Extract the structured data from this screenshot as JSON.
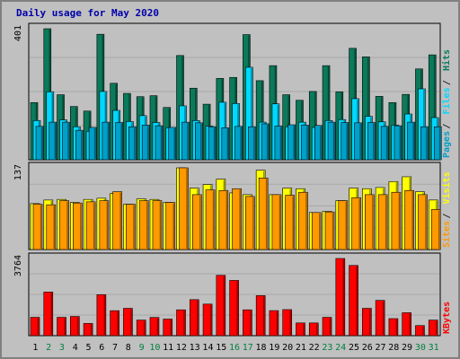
{
  "title": "Daily usage for May 2020",
  "chart_data": [
    {
      "type": "bar",
      "panel": "top",
      "ymax_label": "401",
      "ylim": [
        0,
        401
      ],
      "categories": [
        "1",
        "2",
        "3",
        "4",
        "5",
        "6",
        "7",
        "8",
        "9",
        "10",
        "11",
        "12",
        "13",
        "14",
        "15",
        "16",
        "17",
        "18",
        "19",
        "20",
        "21",
        "22",
        "23",
        "24",
        "25",
        "26",
        "27",
        "28",
        "29",
        "30",
        "31"
      ],
      "weekend_days": [
        "2",
        "3",
        "9",
        "10",
        "16",
        "17",
        "23",
        "24",
        "30",
        "31"
      ],
      "series": [
        {
          "name": "Hits",
          "color": "#0b7a5a",
          "values": [
            175,
            401,
            199,
            163,
            149,
            384,
            234,
            203,
            193,
            196,
            160,
            319,
            219,
            170,
            249,
            252,
            383,
            242,
            288,
            199,
            182,
            209,
            288,
            208,
            341,
            315,
            194,
            175,
            200,
            278,
            321
          ]
        },
        {
          "name": "Files",
          "color": "#00d8ff",
          "values": [
            120,
            208,
            122,
            101,
            87,
            209,
            151,
            117,
            135,
            114,
            98,
            165,
            120,
            103,
            176,
            172,
            283,
            115,
            171,
            101,
            115,
            99,
            120,
            123,
            187,
            133,
            116,
            106,
            140,
            217,
            129
          ]
        },
        {
          "name": "Pages",
          "color": "#00a0c8",
          "values": [
            102,
            115,
            115,
            90,
            99,
            115,
            114,
            101,
            106,
            104,
            99,
            115,
            113,
            101,
            98,
            102,
            101,
            110,
            103,
            107,
            106,
            105,
            115,
            114,
            113,
            114,
            102,
            104,
            115,
            101,
            101
          ]
        }
      ],
      "legend": [
        "Pages",
        "Files",
        "Hits"
      ]
    },
    {
      "type": "bar",
      "panel": "middle",
      "ymax_label": "137",
      "ylim": [
        0,
        137
      ],
      "categories": [
        "1",
        "2",
        "3",
        "4",
        "5",
        "6",
        "7",
        "8",
        "9",
        "10",
        "11",
        "12",
        "13",
        "14",
        "15",
        "16",
        "17",
        "18",
        "19",
        "20",
        "21",
        "22",
        "23",
        "24",
        "25",
        "26",
        "27",
        "28",
        "29",
        "30",
        "31"
      ],
      "series": [
        {
          "name": "Visits",
          "color": "#ffff00",
          "values": [
            77,
            83,
            84,
            79,
            84,
            86,
            94,
            76,
            85,
            84,
            79,
            137,
            103,
            109,
            118,
            95,
            92,
            133,
            92,
            103,
            102,
            62,
            64,
            82,
            103,
            102,
            104,
            114,
            122,
            97,
            83
          ]
        },
        {
          "name": "Sites",
          "color": "#ff9900",
          "values": [
            76,
            75,
            82,
            78,
            80,
            82,
            97,
            76,
            82,
            82,
            79,
            137,
            92,
            100,
            99,
            102,
            89,
            120,
            92,
            91,
            96,
            62,
            63,
            82,
            87,
            92,
            92,
            96,
            99,
            92,
            67
          ]
        }
      ],
      "legend": [
        "Sites",
        "Visits"
      ]
    },
    {
      "type": "bar",
      "panel": "bottom",
      "ymax_label": "3764",
      "ylim": [
        0,
        3764
      ],
      "categories": [
        "1",
        "2",
        "3",
        "4",
        "5",
        "6",
        "7",
        "8",
        "9",
        "10",
        "11",
        "12",
        "13",
        "14",
        "15",
        "16",
        "17",
        "18",
        "19",
        "20",
        "21",
        "22",
        "23",
        "24",
        "25",
        "26",
        "27",
        "28",
        "29",
        "30",
        "31"
      ],
      "series": [
        {
          "name": "KBytes",
          "color": "#ff0000",
          "values": [
            895,
            2129,
            895,
            938,
            597,
            2000,
            1219,
            1333,
            761,
            888,
            809,
            1260,
            1758,
            1540,
            2945,
            2695,
            1260,
            1953,
            1222,
            1271,
            620,
            620,
            895,
            3764,
            3424,
            1333,
            1720,
            832,
            1118,
            493,
            761
          ]
        }
      ],
      "legend": [
        "KBytes"
      ]
    }
  ]
}
